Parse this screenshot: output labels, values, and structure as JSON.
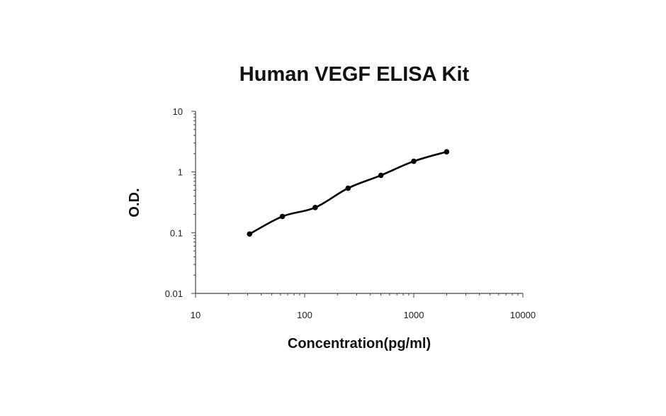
{
  "chart_data": {
    "type": "scatter",
    "title": "Human VEGF ELISA Kit",
    "xlabel": "Concentration(pg/ml)",
    "ylabel": "O.D.",
    "xscale": "log",
    "yscale": "log",
    "xlim": [
      10,
      10000
    ],
    "ylim": [
      0.01,
      10
    ],
    "x_ticks": [
      "10",
      "100",
      "1000",
      "10000"
    ],
    "y_ticks": [
      "0.01",
      "0.1",
      "1",
      "10"
    ],
    "grid": false,
    "legend": "none",
    "fit_line": "smooth curve",
    "series": [
      {
        "x": [
          31.25,
          62.5,
          125,
          250,
          500,
          1000,
          2000
        ],
        "y": [
          0.095,
          0.185,
          0.26,
          0.54,
          0.88,
          1.5,
          2.15
        ]
      }
    ]
  }
}
